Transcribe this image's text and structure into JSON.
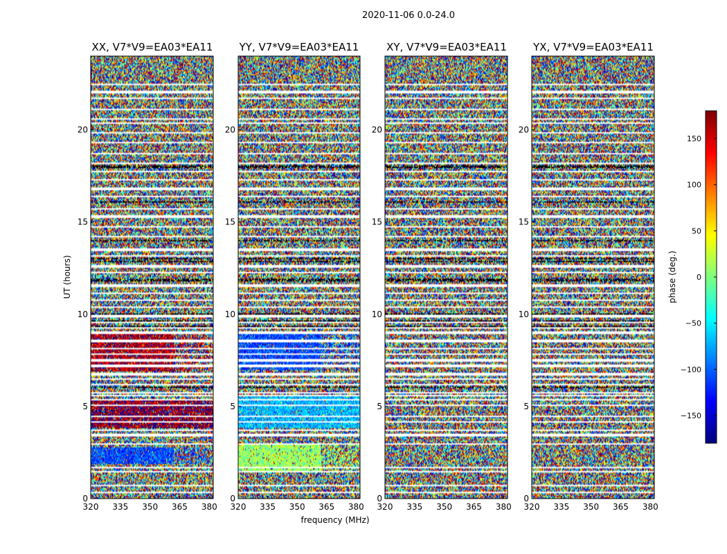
{
  "chart_data": {
    "type": "heatmap",
    "suptitle": "2020-11-06 0.0-24.0",
    "xlabel": "frequency (MHz)",
    "ylabel": "UT (hours)",
    "xlim": [
      320,
      382
    ],
    "ylim": [
      0,
      24
    ],
    "xticks": [
      320,
      335,
      350,
      365,
      380
    ],
    "yticks": [
      0,
      5,
      10,
      15,
      20
    ],
    "panels": [
      {
        "title": "XX, V7*V9=EA03*EA11",
        "coherent": [
          {
            "t0": 1.9,
            "t1": 2.8,
            "phase": -110,
            "fade_after": 362
          },
          {
            "t0": 3.8,
            "t1": 5.4,
            "phase": 170,
            "fade_after": 382
          },
          {
            "t0": 6.9,
            "t1": 8.9,
            "phase": 160,
            "fade_after": 362
          }
        ]
      },
      {
        "title": "YY, V7*V9=EA03*EA11",
        "coherent": [
          {
            "t0": 1.5,
            "t1": 2.9,
            "phase": 10,
            "fade_after": 362
          },
          {
            "t0": 3.8,
            "t1": 5.6,
            "phase": -70,
            "fade_after": 382
          },
          {
            "t0": 7.0,
            "t1": 8.9,
            "phase": -110,
            "fade_after": 362
          }
        ]
      },
      {
        "title": "XY, V7*V9=EA03*EA11",
        "coherent": []
      },
      {
        "title": "YX, V7*V9=EA03*EA11",
        "coherent": []
      }
    ],
    "colorbar": {
      "label": "phase (deg.)",
      "range": [
        -180,
        180
      ],
      "ticks": [
        150,
        100,
        50,
        0,
        -50,
        -100,
        -150
      ],
      "tick_labels": [
        "150",
        "100",
        "50",
        "0",
        "−50",
        "−100",
        "−150"
      ],
      "colormap": "jet"
    },
    "gaps_hours": [
      0.35,
      0.7,
      1.45,
      1.7,
      2.95,
      3.45,
      3.7,
      4.15,
      4.45,
      5.05,
      5.35,
      5.6,
      5.75,
      6.2,
      6.5,
      6.75,
      7.2,
      7.5,
      7.85,
      8.15,
      8.55,
      9.0,
      9.25,
      9.55,
      9.9,
      10.4,
      10.75,
      11.15,
      11.55,
      12.25,
      12.6,
      13.15,
      13.5,
      14.2,
      14.75,
      15.3,
      15.7,
      16.4,
      16.8,
      17.3,
      17.75,
      18.2,
      18.7,
      19.3,
      19.85,
      20.35,
      20.6,
      21.1,
      21.7,
      22.05,
      22.45
    ],
    "flagged_hours": [
      9.3,
      9.6,
      12.85,
      13.0,
      6.05,
      10.0,
      11.85,
      14.0,
      16.1,
      18.0
    ]
  }
}
